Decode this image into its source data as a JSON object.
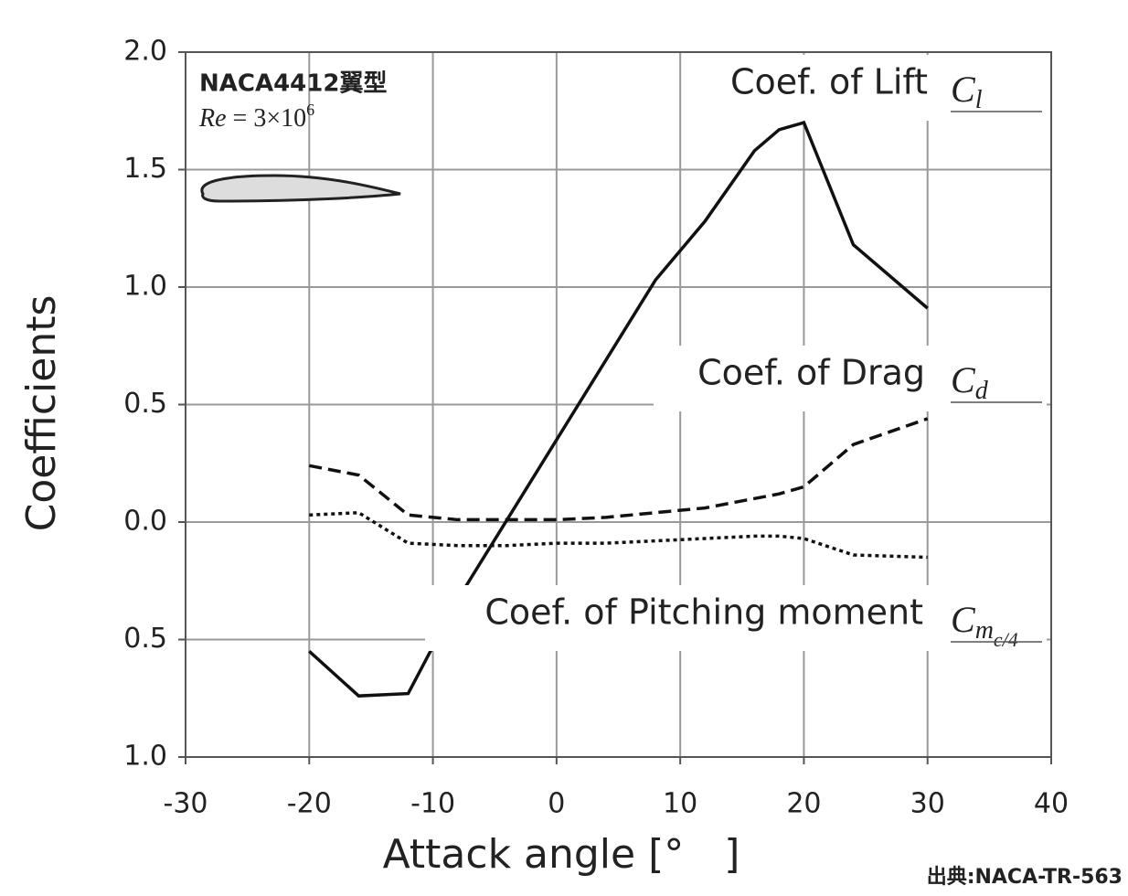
{
  "chart_data": {
    "type": "line",
    "x_label": "Attack angle [°　]",
    "y_label": "Coefficients",
    "annotations": {
      "airfoil": "NACA4412翼型",
      "reynolds": [
        "Re",
        " = 3×10",
        "6"
      ],
      "source": "出典:NACA-TR-563"
    },
    "x": [
      -20,
      -16,
      -12,
      -8,
      -4,
      0,
      4,
      8,
      12,
      16,
      18,
      20,
      24,
      30
    ],
    "series": [
      {
        "name": "Coef. of Lift",
        "symbol": [
          "C",
          "l"
        ],
        "color": "#111111",
        "style": "solid",
        "values": [
          -0.55,
          -0.74,
          -0.73,
          -0.33,
          0.01,
          0.35,
          0.69,
          1.03,
          1.28,
          1.58,
          1.67,
          1.7,
          1.18,
          0.91
        ]
      },
      {
        "name": "Coef. of Drag",
        "symbol": [
          "C",
          "d"
        ],
        "color": "#111111",
        "style": "dashed",
        "values": [
          0.24,
          0.2,
          0.03,
          0.01,
          0.01,
          0.01,
          0.02,
          0.04,
          0.06,
          0.1,
          0.12,
          0.15,
          0.33,
          0.44
        ]
      },
      {
        "name": "Coef. of Pitching moment",
        "symbol": [
          "C",
          "m",
          "c/4"
        ],
        "color": "#111111",
        "style": "dotted",
        "values": [
          0.03,
          0.04,
          -0.09,
          -0.1,
          -0.1,
          -0.09,
          -0.09,
          -0.08,
          -0.07,
          -0.06,
          -0.06,
          -0.07,
          -0.14,
          -0.15
        ]
      }
    ],
    "xlim": [
      -30,
      40
    ],
    "xticks": [
      -30,
      -20,
      -10,
      0,
      10,
      20,
      30,
      40
    ],
    "ylim": [
      -1.0,
      2.0
    ],
    "yticks": [
      {
        "value": -1.0,
        "label": "1.0"
      },
      {
        "value": -0.5,
        "label": "0.5"
      },
      {
        "value": 0,
        "label": "0.0"
      },
      {
        "value": 0.5,
        "label": "0.5"
      },
      {
        "value": 1.0,
        "label": "1.0"
      },
      {
        "value": 1.5,
        "label": "1.5"
      },
      {
        "value": 2.0,
        "label": "2.0"
      }
    ],
    "grid": true
  }
}
